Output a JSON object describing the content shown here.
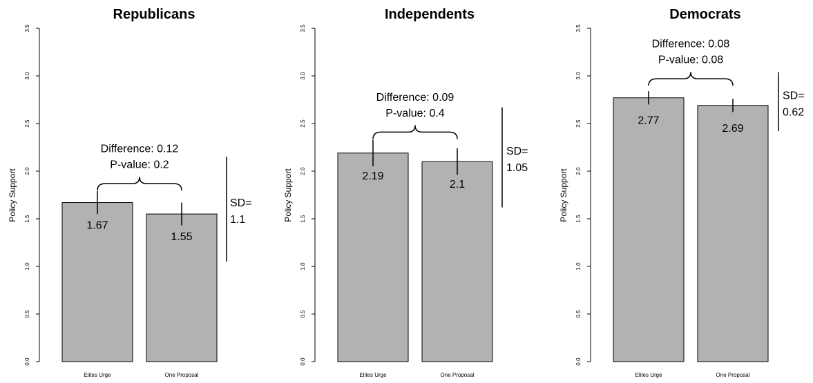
{
  "chart_data": [
    {
      "type": "bar",
      "title": "Republicans",
      "ylabel": "Policy Support",
      "xlabel": "",
      "categories": [
        "Elites Urge",
        "One Proposal"
      ],
      "values": [
        1.67,
        1.55
      ],
      "value_labels": [
        "1.67",
        "1.55"
      ],
      "ylim": [
        0,
        3.5
      ],
      "yticks": [
        "0.0",
        "0.5",
        "1.0",
        "1.5",
        "2.0",
        "2.5",
        "3.0",
        "3.5"
      ],
      "error_bars": [
        [
          1.55,
          1.79
        ],
        [
          1.43,
          1.67
        ]
      ],
      "annotation": {
        "difference_text": "Difference: 0.12",
        "pvalue_text": "P-value: 0.2",
        "brace_y": 1.87,
        "text_y": 2.2
      },
      "sd": {
        "label_line1": "SD=",
        "label_line2": "1.1",
        "range": [
          1.05,
          2.15
        ]
      }
    },
    {
      "type": "bar",
      "title": "Independents",
      "ylabel": "Policy Support",
      "xlabel": "",
      "categories": [
        "Elites Urge",
        "One Proposal"
      ],
      "values": [
        2.19,
        2.1
      ],
      "value_labels": [
        "2.19",
        "2.1"
      ],
      "ylim": [
        0,
        3.5
      ],
      "yticks": [
        "0.0",
        "0.5",
        "1.0",
        "1.5",
        "2.0",
        "2.5",
        "3.0",
        "3.5"
      ],
      "error_bars": [
        [
          2.05,
          2.33
        ],
        [
          1.96,
          2.24
        ]
      ],
      "annotation": {
        "difference_text": "Difference: 0.09",
        "pvalue_text": "P-value: 0.4",
        "brace_y": 2.41,
        "text_y": 2.74
      },
      "sd": {
        "label_line1": "SD=",
        "label_line2": "1.05",
        "range": [
          1.62,
          2.67
        ]
      }
    },
    {
      "type": "bar",
      "title": "Democrats",
      "ylabel": "Policy Support",
      "xlabel": "",
      "categories": [
        "Elites Urge",
        "One Proposal"
      ],
      "values": [
        2.77,
        2.69
      ],
      "value_labels": [
        "2.77",
        "2.69"
      ],
      "ylim": [
        0,
        3.5
      ],
      "yticks": [
        "0.0",
        "0.5",
        "1.0",
        "1.5",
        "2.0",
        "2.5",
        "3.0",
        "3.5"
      ],
      "error_bars": [
        [
          2.7,
          2.84
        ],
        [
          2.62,
          2.76
        ]
      ],
      "annotation": {
        "difference_text": "Difference: 0.08",
        "pvalue_text": "P-value: 0.08",
        "brace_y": 2.97,
        "text_y": 3.3
      },
      "sd": {
        "label_line1": "SD=",
        "label_line2": "0.62",
        "range": [
          2.42,
          3.04
        ]
      }
    }
  ]
}
